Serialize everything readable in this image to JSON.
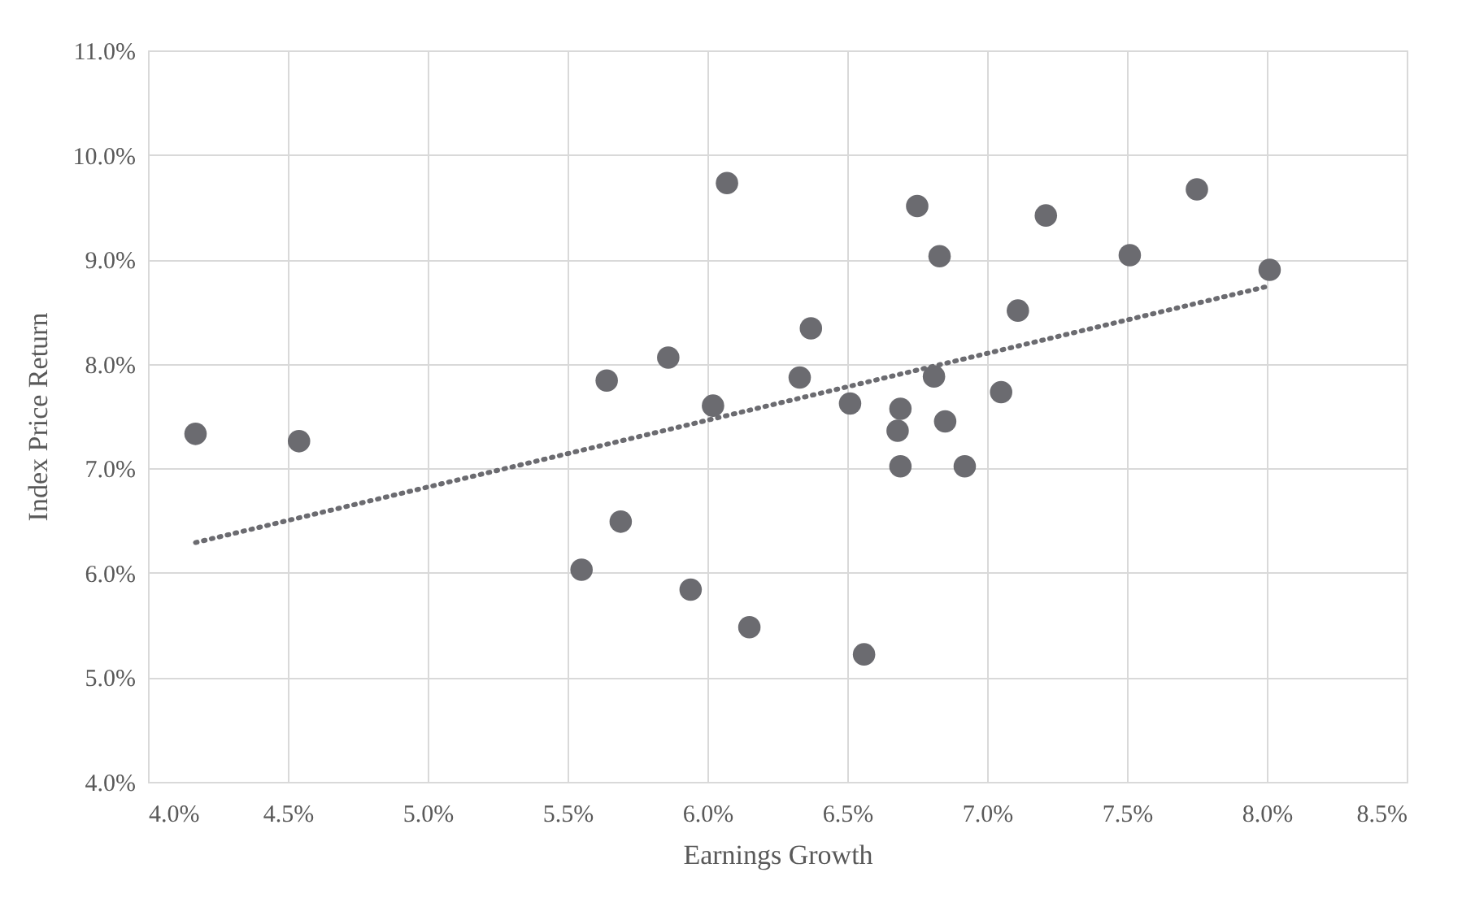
{
  "chart_data": {
    "type": "scatter",
    "xlabel": "Earnings Growth",
    "ylabel": "Index Price Return",
    "xlim": [
      4.0,
      8.5
    ],
    "ylim": [
      4.0,
      11.0
    ],
    "xticks": [
      {
        "value": 4.0,
        "label": "4.0%"
      },
      {
        "value": 4.5,
        "label": "4.5%"
      },
      {
        "value": 5.0,
        "label": "5.0%"
      },
      {
        "value": 5.5,
        "label": "5.5%"
      },
      {
        "value": 6.0,
        "label": "6.0%"
      },
      {
        "value": 6.5,
        "label": "6.5%"
      },
      {
        "value": 7.0,
        "label": "7.0%"
      },
      {
        "value": 7.5,
        "label": "7.5%"
      },
      {
        "value": 8.0,
        "label": "8.0%"
      },
      {
        "value": 8.5,
        "label": "8.5%"
      }
    ],
    "yticks": [
      {
        "value": 4.0,
        "label": "4.0%"
      },
      {
        "value": 5.0,
        "label": "5.0%"
      },
      {
        "value": 6.0,
        "label": "6.0%"
      },
      {
        "value": 7.0,
        "label": "7.0%"
      },
      {
        "value": 8.0,
        "label": "8.0%"
      },
      {
        "value": 9.0,
        "label": "9.0%"
      },
      {
        "value": 10.0,
        "label": "10.0%"
      },
      {
        "value": 11.0,
        "label": "11.0%"
      }
    ],
    "grid": true,
    "series": [
      {
        "color": "#6b6b70",
        "marker": "circle",
        "x": [
          4.17,
          4.54,
          5.64,
          5.86,
          6.02,
          6.07,
          5.69,
          6.75,
          6.83,
          7.21,
          7.75,
          7.51,
          8.01,
          7.11,
          6.37,
          6.33,
          6.51,
          6.81,
          7.05,
          6.69,
          6.68,
          6.85,
          6.69,
          6.92,
          5.55,
          5.94,
          6.15,
          6.56
        ],
        "values": [
          7.33,
          7.26,
          7.84,
          8.06,
          7.6,
          9.73,
          6.49,
          9.51,
          9.03,
          9.42,
          9.67,
          9.04,
          8.9,
          8.51,
          8.34,
          7.87,
          7.62,
          7.88,
          7.73,
          7.57,
          7.36,
          7.45,
          7.02,
          7.02,
          6.03,
          5.84,
          5.48,
          5.22
        ]
      },
      {
        "type": "line",
        "color": "#6b6b70",
        "line_style": "dotted",
        "x": [
          4.17,
          8.0
        ],
        "values": [
          6.29,
          8.74
        ]
      }
    ]
  }
}
